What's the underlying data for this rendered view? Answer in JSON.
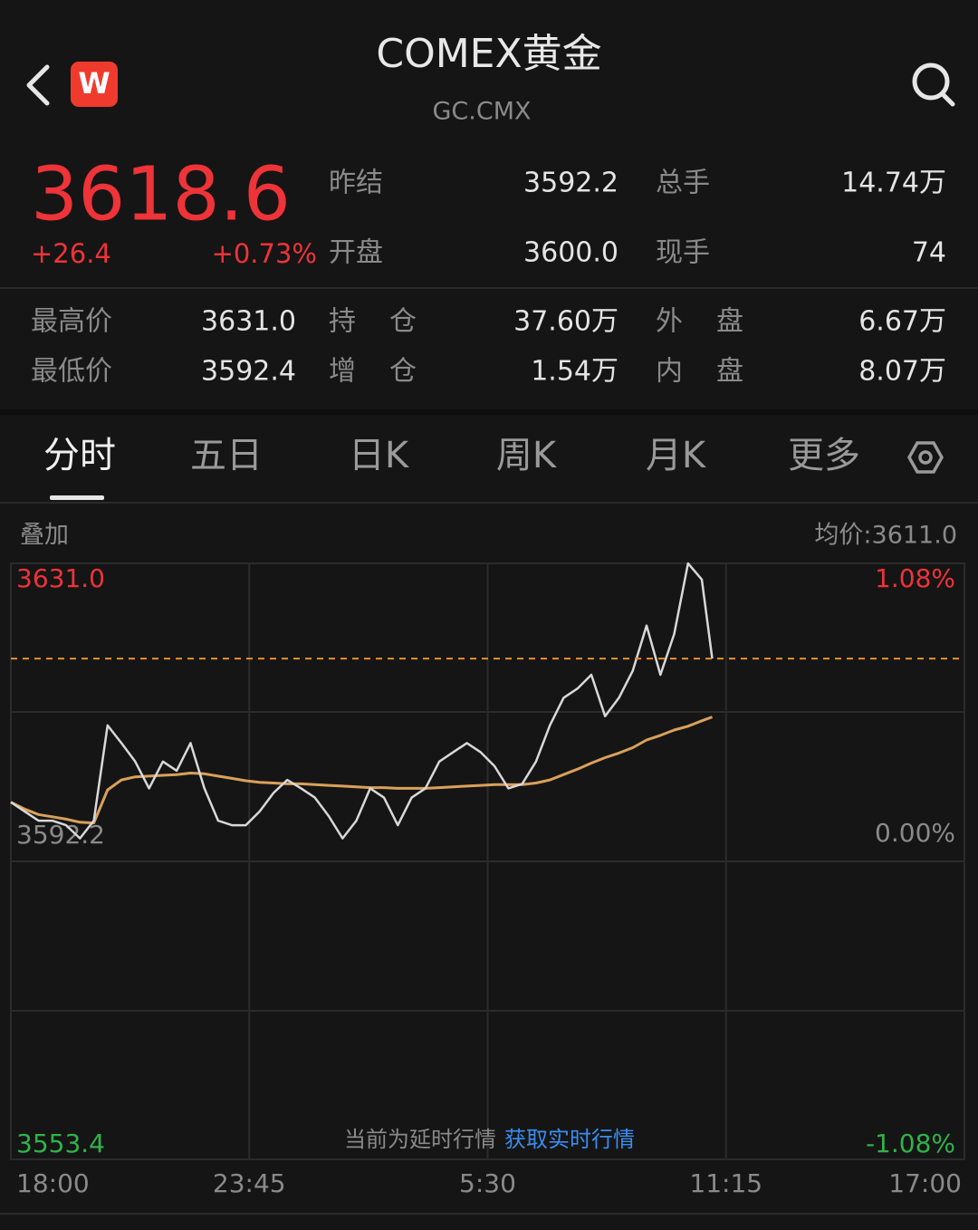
{
  "header": {
    "logo": "W",
    "title": "COMEX黄金",
    "subtitle": "GC.CMX"
  },
  "quote": {
    "price": "3618.6",
    "change": "+26.4",
    "change_pct": "+0.73%",
    "stats": [
      [
        "昨结",
        "3592.2",
        "总手",
        "14.74万"
      ],
      [
        "开盘",
        "3600.0",
        "现手",
        "74"
      ]
    ],
    "details": [
      [
        "最高价",
        "3631.0",
        "持仓",
        "37.60万",
        "外盘",
        "6.67万"
      ],
      [
        "最低价",
        "3592.4",
        "增仓",
        "1.54万",
        "内盘",
        "8.07万"
      ]
    ]
  },
  "tabs": [
    "分时",
    "五日",
    "日K",
    "周K",
    "月K",
    "更多"
  ],
  "overlay": "叠加",
  "avg_price": "均价:3611.0",
  "notice": {
    "text": "当前为延时行情",
    "link": "获取实时行情"
  },
  "chart_data": {
    "type": "line",
    "x": [
      "18:00",
      "18:20",
      "18:40",
      "19:00",
      "19:20",
      "19:40",
      "20:00",
      "20:20",
      "20:40",
      "21:00",
      "21:20",
      "21:40",
      "22:00",
      "22:20",
      "22:40",
      "23:00",
      "23:20",
      "23:40",
      "0:00",
      "0:20",
      "0:40",
      "1:00",
      "1:20",
      "1:40",
      "2:00",
      "2:20",
      "2:40",
      "3:00",
      "3:20",
      "3:40",
      "4:00",
      "4:20",
      "4:40",
      "5:00",
      "5:20",
      "5:40",
      "6:00",
      "6:20",
      "6:40",
      "7:00",
      "7:20",
      "7:40",
      "8:00",
      "8:20",
      "8:40",
      "9:00",
      "9:20",
      "9:40",
      "10:00",
      "10:20",
      "10:40",
      "10:55"
    ],
    "series": [
      {
        "color": "#d8d8d8",
        "values": [
          3599.9,
          3598.7,
          3597.5,
          3597.5,
          3596.9,
          3595.2,
          3597.5,
          3609.9,
          3607.6,
          3605.2,
          3601.7,
          3605.2,
          3604.0,
          3607.6,
          3601.7,
          3597.5,
          3596.9,
          3596.9,
          3598.7,
          3601.1,
          3602.8,
          3601.7,
          3600.5,
          3598.1,
          3595.2,
          3597.5,
          3601.7,
          3600.5,
          3596.9,
          3600.5,
          3601.7,
          3605.2,
          3606.4,
          3607.6,
          3606.4,
          3604.6,
          3601.7,
          3602.3,
          3605.2,
          3609.9,
          3613.5,
          3614.7,
          3616.5,
          3611.1,
          3613.5,
          3617.0,
          3622.9,
          3616.5,
          3621.8,
          3631.0,
          3628.9,
          3618.6
        ]
      },
      {
        "color": "#d9a15a",
        "values": [
          3599.9,
          3599.0,
          3598.3,
          3598.0,
          3597.7,
          3597.3,
          3597.2,
          3601.5,
          3602.8,
          3603.2,
          3603.3,
          3603.4,
          3603.5,
          3603.7,
          3603.6,
          3603.3,
          3603.0,
          3602.7,
          3602.5,
          3602.4,
          3602.3,
          3602.3,
          3602.2,
          3602.1,
          3602.0,
          3601.9,
          3601.8,
          3601.8,
          3601.7,
          3601.7,
          3601.7,
          3601.8,
          3601.9,
          3602.0,
          3602.1,
          3602.2,
          3602.2,
          3602.2,
          3602.4,
          3602.8,
          3603.5,
          3604.2,
          3605.0,
          3605.7,
          3606.3,
          3607.0,
          3608.0,
          3608.6,
          3609.3,
          3609.8,
          3610.5,
          3611.0
        ]
      }
    ],
    "xlim": [
      "18:00",
      "17:00"
    ],
    "xticks": [
      "18:00",
      "23:45",
      "5:30",
      "11:15",
      "17:00"
    ],
    "ylim": [
      3553.4,
      3631.0
    ],
    "yticks": [
      {
        "value": 3631.0,
        "label": "3631.0"
      },
      3592.2,
      3553.4
    ],
    "y2lim": [
      -1.08,
      1.08
    ],
    "y2ticks": [
      {
        "value": 1.08,
        "label": "1.08%"
      },
      {
        "value": 0,
        "label": "0.00%"
      },
      {
        "value": -1.08,
        "label": "-1.08%"
      }
    ],
    "grid": true
  }
}
